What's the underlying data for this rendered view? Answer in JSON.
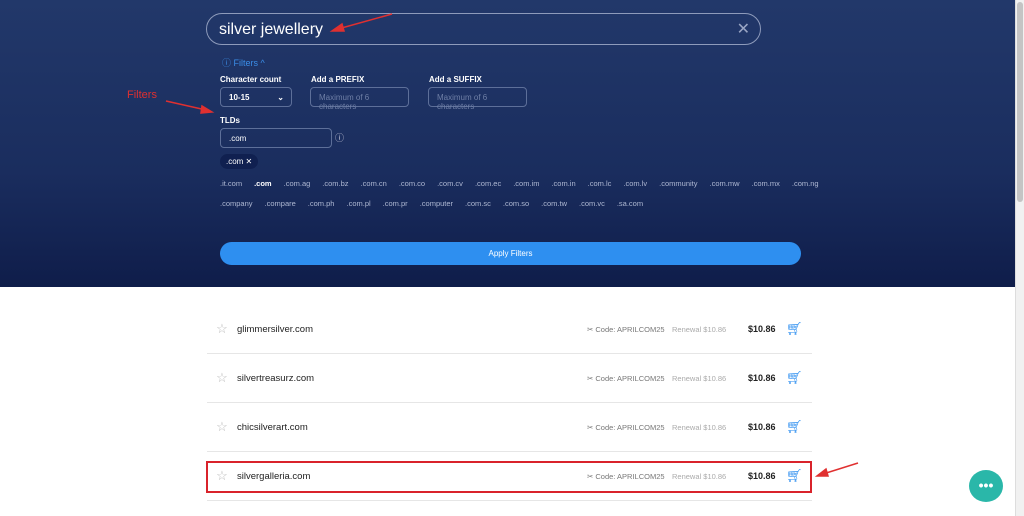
{
  "search": {
    "value": "silver jewellery",
    "clear_icon": "close-icon"
  },
  "filters": {
    "toggle": "ⓘ Filters ^",
    "char_count_label": "Character count",
    "char_count_value": "10-15",
    "prefix_label": "Add a PREFIX",
    "prefix_placeholder": "Maximum of 6 characters",
    "suffix_label": "Add a SUFFIX",
    "suffix_placeholder": "Maximum of 6 characters",
    "tlds_label": "TLDs",
    "tlds_value": ".com",
    "chip": ".com ✕",
    "tld_row1": [
      ".it.com",
      ".com",
      ".com.ag",
      ".com.bz",
      ".com.cn",
      ".com.co",
      ".com.cv",
      ".com.ec",
      ".com.im",
      ".com.in",
      ".com.lc",
      ".com.lv",
      ".community",
      ".com.mw",
      ".com.mx",
      ".com.ng"
    ],
    "tld_row2": [
      ".company",
      ".compare",
      ".com.ph",
      ".com.pl",
      ".com.pr",
      ".computer",
      ".com.sc",
      ".com.so",
      ".com.tw",
      ".com.vc",
      ".sa.com"
    ],
    "apply": "Apply Filters"
  },
  "results": [
    {
      "domain": "glimmersilver.com",
      "code": "✂ Code: APRILCOM25",
      "renewal": "Renewal $10.86",
      "price": "$10.86"
    },
    {
      "domain": "silvertreasurz.com",
      "code": "✂ Code: APRILCOM25",
      "renewal": "Renewal $10.86",
      "price": "$10.86"
    },
    {
      "domain": "chicsilverart.com",
      "code": "✂ Code: APRILCOM25",
      "renewal": "Renewal $10.86",
      "price": "$10.86"
    },
    {
      "domain": "silvergalleria.com",
      "code": "✂ Code: APRILCOM25",
      "renewal": "Renewal $10.86",
      "price": "$10.86"
    }
  ],
  "annotation": {
    "filters_label": "Filters",
    "color": "#e03030"
  },
  "colors": {
    "accent": "#2e8ff0",
    "chat": "#2ab7a9"
  }
}
